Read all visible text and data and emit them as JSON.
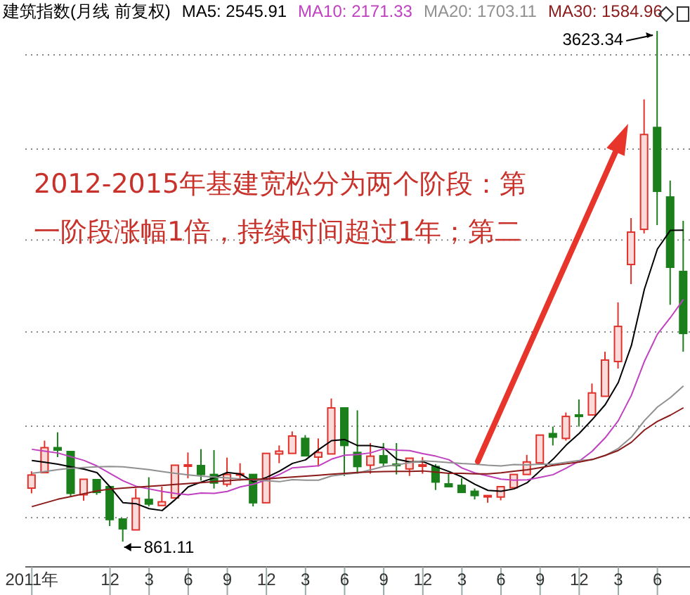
{
  "chart_data": {
    "type": "candlestick",
    "title": "建筑指数(月线 前复权)",
    "categories": [
      "2011年",
      null,
      null,
      null,
      null,
      null,
      "12",
      null,
      null,
      "3",
      null,
      null,
      "6",
      null,
      null,
      "9",
      null,
      null,
      "12",
      null,
      null,
      "3",
      null,
      null,
      "6",
      null,
      null,
      "9",
      null,
      null,
      "12",
      null,
      null,
      "3",
      null,
      null,
      "6",
      null,
      null,
      "9",
      null,
      null,
      "12",
      null,
      null,
      "3",
      null,
      null,
      "6",
      null,
      null
    ],
    "ohlc": [
      [
        1150,
        1241,
        1122,
        1221
      ],
      [
        1234,
        1407,
        1224,
        1369
      ],
      [
        1369,
        1452,
        1318,
        1356
      ],
      [
        1348,
        1352,
        1107,
        1122
      ],
      [
        1114,
        1203,
        1082,
        1198
      ],
      [
        1196,
        1203,
        1114,
        1127
      ],
      [
        1158,
        1158,
        945,
        980
      ],
      [
        983,
        983,
        861.11,
        930
      ],
      [
        924,
        1148,
        920,
        1095
      ],
      [
        1089,
        1209,
        1051,
        1064
      ],
      [
        1056,
        1158,
        1051,
        1076
      ],
      [
        1097,
        1274,
        1097,
        1274
      ],
      [
        1270,
        1343,
        1203,
        1276
      ],
      [
        1272,
        1361,
        1191,
        1224
      ],
      [
        1224,
        1356,
        1148,
        1178
      ],
      [
        1171,
        1315,
        1158,
        1224
      ],
      [
        1224,
        1285,
        1191,
        1228
      ],
      [
        1224,
        1230,
        1051,
        1071
      ],
      [
        1071,
        1338,
        1071,
        1338
      ],
      [
        1335,
        1381,
        1285,
        1350
      ],
      [
        1338,
        1457,
        1330,
        1432
      ],
      [
        1419,
        1437,
        1315,
        1325
      ],
      [
        1318,
        1419,
        1267,
        1343
      ],
      [
        1335,
        1635,
        1330,
        1584
      ],
      [
        1584,
        1590,
        1216,
        1381
      ],
      [
        1343,
        1571,
        1228,
        1267
      ],
      [
        1274,
        1394,
        1228,
        1323
      ],
      [
        1325,
        1394,
        1267,
        1287
      ],
      [
        1280,
        1394,
        1224,
        1272
      ],
      [
        1254,
        1318,
        1216,
        1312
      ],
      [
        1272,
        1318,
        1228,
        1276
      ],
      [
        1267,
        1280,
        1140,
        1183
      ],
      [
        1173,
        1228,
        1148,
        1158
      ],
      [
        1165,
        1203,
        1122,
        1127
      ],
      [
        1133,
        1148,
        1089,
        1110
      ],
      [
        1107,
        1114,
        1071,
        1110
      ],
      [
        1102,
        1165,
        1084,
        1158
      ],
      [
        1152,
        1234,
        1148,
        1224
      ],
      [
        1224,
        1330,
        1216,
        1292
      ],
      [
        1287,
        1437,
        1280,
        1437
      ],
      [
        1445,
        1483,
        1381,
        1426
      ],
      [
        1419,
        1559,
        1407,
        1538
      ],
      [
        1546,
        1630,
        1483,
        1538
      ],
      [
        1546,
        1716,
        1540,
        1665
      ],
      [
        1647,
        1888,
        1645,
        1843
      ],
      [
        1835,
        2155,
        1797,
        2025
      ],
      [
        2360,
        2611,
        2254,
        2535
      ],
      [
        2550,
        3253,
        2528,
        3063
      ],
      [
        3101,
        3623.34,
        2573,
        2756
      ],
      [
        2725,
        2814,
        2142,
        2345
      ],
      [
        2322,
        2596,
        1888,
        1987
      ]
    ],
    "colors": [
      "#e0312b",
      "#e0312b",
      "#1b7f1b",
      "#1b7f1b",
      "#e0312b",
      "#1b7f1b",
      "#1b7f1b",
      "#1b7f1b",
      "#e0312b",
      "#1b7f1b",
      "#e0312b",
      "#e0312b",
      "#e0312b",
      "#1b7f1b",
      "#1b7f1b",
      "#e0312b",
      "#e0312b",
      "#1b7f1b",
      "#e0312b",
      "#e0312b",
      "#e0312b",
      "#1b7f1b",
      "#e0312b",
      "#e0312b",
      "#1b7f1b",
      "#1b7f1b",
      "#e0312b",
      "#1b7f1b",
      "#1b7f1b",
      "#e0312b",
      "#e0312b",
      "#1b7f1b",
      "#1b7f1b",
      "#1b7f1b",
      "#1b7f1b",
      "#e0312b",
      "#e0312b",
      "#e0312b",
      "#e0312b",
      "#e0312b",
      "#1b7f1b",
      "#e0312b",
      "#1b7f1b",
      "#e0312b",
      "#e0312b",
      "#e0312b",
      "#e0312b",
      "#e0312b",
      "#1b7f1b",
      "#1b7f1b",
      "#1b7f1b"
    ],
    "series": [
      {
        "name": "MA5: 2545.91",
        "type": "line",
        "color": "#000000",
        "values": [
          1300,
          1290,
          1280,
          1265,
          1253,
          1234,
          1157,
          1071,
          1066,
          1039,
          1029,
          1088,
          1157,
          1183,
          1206,
          1235,
          1226,
          1185,
          1208,
          1242,
          1284,
          1303,
          1358,
          1407,
          1413,
          1380,
          1380,
          1368,
          1306,
          1292,
          1294,
          1266,
          1240,
          1211,
          1171,
          1138,
          1133,
          1146,
          1179,
          1244,
          1307,
          1383,
          1446,
          1521,
          1602,
          1722,
          1921,
          2226,
          2444,
          2545,
          2545.91
        ]
      },
      {
        "name": "MA10: 2171.33",
        "type": "line",
        "color": "#c040c0",
        "values": [
          1360,
          1350,
          1340,
          1320,
          1300,
          1270,
          1230,
          1190,
          1160,
          1146,
          1132,
          1122,
          1114,
          1124,
          1122,
          1132,
          1157,
          1171,
          1195,
          1224,
          1260,
          1265,
          1271,
          1307,
          1328,
          1332,
          1341,
          1363,
          1356,
          1353,
          1337,
          1323,
          1304,
          1259,
          1232,
          1216,
          1199,
          1193,
          1195,
          1208,
          1223,
          1258,
          1296,
          1350,
          1423,
          1515,
          1652,
          1836,
          1983,
          2073,
          2171.33
        ]
      },
      {
        "name": "MA20: 1703.11",
        "type": "line",
        "color": "#909090",
        "values": [
          1230,
          1240,
          1250,
          1258,
          1262,
          1265,
          1267,
          1265,
          1258,
          1250,
          1240,
          1230,
          1222,
          1215,
          1210,
          1205,
          1200,
          1195,
          1190,
          1185,
          1196,
          1193,
          1193,
          1216,
          1225,
          1232,
          1249,
          1267,
          1276,
          1288,
          1298,
          1294,
          1288,
          1283,
          1280,
          1274,
          1270,
          1278,
          1276,
          1280,
          1280,
          1290,
          1300,
          1304,
          1327,
          1365,
          1426,
          1515,
          1589,
          1640,
          1703.11
        ]
      },
      {
        "name": "MA30: 1584.96",
        "type": "line",
        "color": "#8b1a1a",
        "values": [
          1050,
          1070,
          1090,
          1105,
          1120,
          1135,
          1145,
          1150,
          1155,
          1160,
          1165,
          1170,
          1175,
          1180,
          1185,
          1190,
          1195,
          1198,
          1200,
          1205,
          1210,
          1215,
          1220,
          1225,
          1230,
          1235,
          1238,
          1240,
          1241,
          1241,
          1243,
          1237,
          1230,
          1230,
          1227,
          1227,
          1233,
          1242,
          1249,
          1261,
          1273,
          1282,
          1291,
          1305,
          1327,
          1354,
          1398,
          1464,
          1511,
          1545,
          1584.96
        ]
      }
    ],
    "yticks": [
      {
        "value": 990,
        "label": null
      },
      {
        "value": 1485,
        "label": null
      },
      {
        "value": 1995,
        "label": null
      },
      {
        "value": 2492,
        "label": null
      },
      {
        "value": 2984,
        "label": null
      },
      {
        "value": 3494,
        "label": null
      }
    ],
    "tick_labels": "x",
    "grid": "y",
    "legend": "top right",
    "annotations": [
      "2012-2015年基建宽松分为两个阶段：第一阶段涨幅1倍，持续时间超过1年；第二",
      "3623.34",
      "861.11"
    ]
  }
}
